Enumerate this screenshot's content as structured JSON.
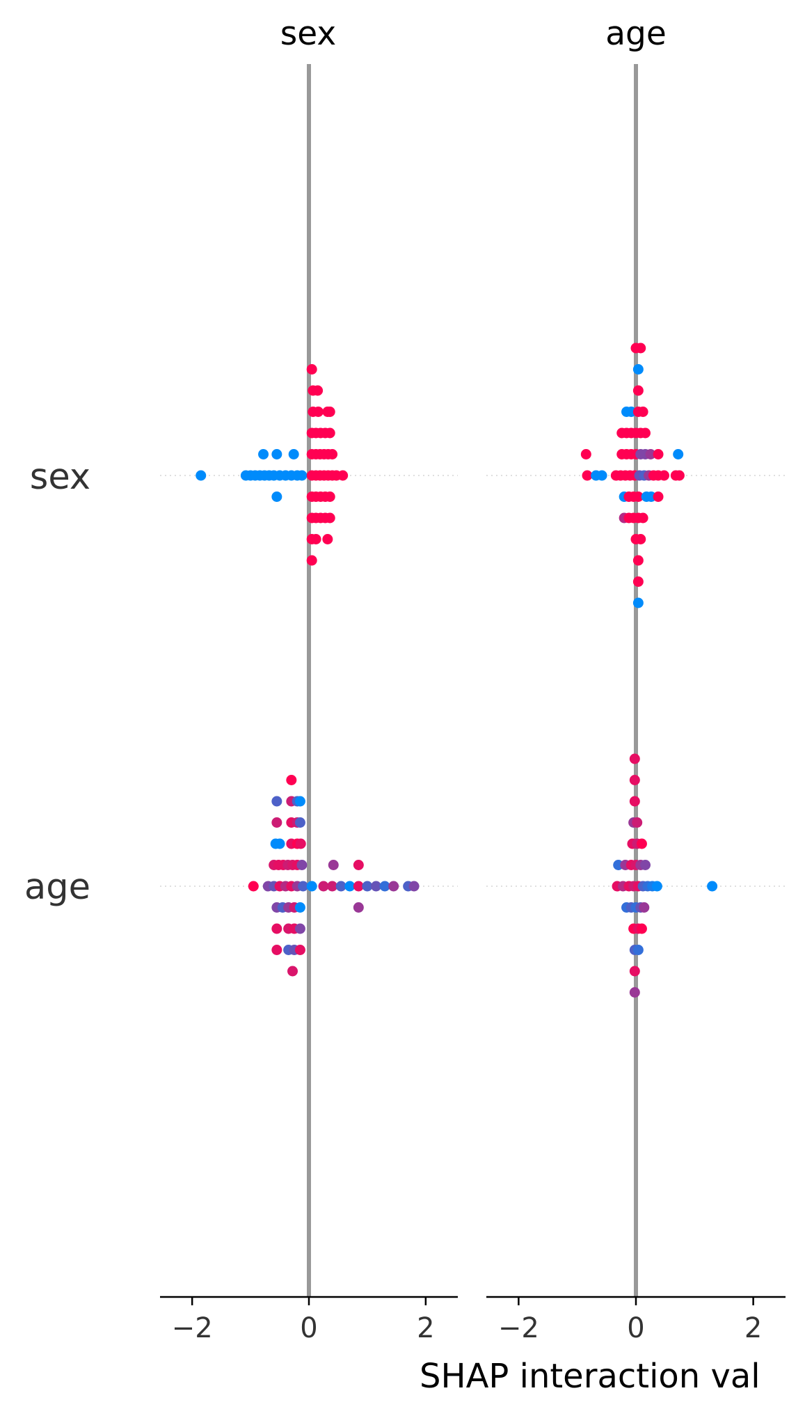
{
  "chart_data": {
    "type": "scatter",
    "subtype": "shap-interaction-summary",
    "columns": [
      "sex",
      "age"
    ],
    "rows": [
      "sex",
      "age"
    ],
    "xlabel": "SHAP interaction val",
    "xlim": [
      -2.55,
      2.55
    ],
    "xticks": [
      {
        "value": -2,
        "label": "−2"
      },
      {
        "value": 0,
        "label": "0"
      },
      {
        "value": 2,
        "label": "2"
      }
    ],
    "colors": {
      "low": "#008bfb",
      "high": "#ff0052",
      "zero_line": "#999999",
      "row_guide": "#cccccc",
      "axis": "#000000"
    },
    "grid": false,
    "legend": "none",
    "panels": [
      {
        "row": "sex",
        "column": "sex",
        "points": [
          {
            "x": 0.05,
            "y": 5,
            "c": 1
          },
          {
            "x": 0.07,
            "y": 4,
            "c": 1
          },
          {
            "x": 0.15,
            "y": 4,
            "c": 1
          },
          {
            "x": 0.07,
            "y": 3,
            "c": 1
          },
          {
            "x": 0.16,
            "y": 3,
            "c": 1
          },
          {
            "x": 0.32,
            "y": 3,
            "c": 1
          },
          {
            "x": 0.36,
            "y": 3,
            "c": 1
          },
          {
            "x": 0.05,
            "y": 2,
            "c": 1
          },
          {
            "x": 0.12,
            "y": 2,
            "c": 1
          },
          {
            "x": 0.2,
            "y": 2,
            "c": 1
          },
          {
            "x": 0.28,
            "y": 2,
            "c": 1
          },
          {
            "x": 0.36,
            "y": 2,
            "c": 1
          },
          {
            "x": -0.78,
            "y": 1,
            "c": 0
          },
          {
            "x": -0.55,
            "y": 1,
            "c": 0
          },
          {
            "x": -0.26,
            "y": 1,
            "c": 0
          },
          {
            "x": 0.05,
            "y": 1,
            "c": 1
          },
          {
            "x": 0.12,
            "y": 1,
            "c": 1
          },
          {
            "x": 0.19,
            "y": 1,
            "c": 1
          },
          {
            "x": 0.26,
            "y": 1,
            "c": 1
          },
          {
            "x": 0.33,
            "y": 1,
            "c": 1
          },
          {
            "x": 0.4,
            "y": 1,
            "c": 1
          },
          {
            "x": -1.85,
            "y": 0,
            "c": 0
          },
          {
            "x": -1.08,
            "y": 0,
            "c": 0
          },
          {
            "x": -1.0,
            "y": 0,
            "c": 0
          },
          {
            "x": -0.92,
            "y": 0,
            "c": 0
          },
          {
            "x": -0.84,
            "y": 0,
            "c": 0
          },
          {
            "x": -0.76,
            "y": 0,
            "c": 0
          },
          {
            "x": -0.68,
            "y": 0,
            "c": 0
          },
          {
            "x": -0.6,
            "y": 0,
            "c": 0
          },
          {
            "x": -0.5,
            "y": 0,
            "c": 0
          },
          {
            "x": -0.4,
            "y": 0,
            "c": 0
          },
          {
            "x": -0.3,
            "y": 0,
            "c": 0
          },
          {
            "x": -0.2,
            "y": 0,
            "c": 0
          },
          {
            "x": -0.12,
            "y": 0,
            "c": 0
          },
          {
            "x": 0.05,
            "y": 0,
            "c": 1
          },
          {
            "x": 0.12,
            "y": 0,
            "c": 1
          },
          {
            "x": 0.19,
            "y": 0,
            "c": 1
          },
          {
            "x": 0.26,
            "y": 0,
            "c": 1
          },
          {
            "x": 0.33,
            "y": 0,
            "c": 1
          },
          {
            "x": 0.4,
            "y": 0,
            "c": 1
          },
          {
            "x": 0.47,
            "y": 0,
            "c": 1
          },
          {
            "x": 0.58,
            "y": 0,
            "c": 1
          },
          {
            "x": -0.55,
            "y": -1,
            "c": 0
          },
          {
            "x": 0.05,
            "y": -1,
            "c": 1
          },
          {
            "x": 0.12,
            "y": -1,
            "c": 1
          },
          {
            "x": 0.2,
            "y": -1,
            "c": 1
          },
          {
            "x": 0.28,
            "y": -1,
            "c": 1
          },
          {
            "x": 0.36,
            "y": -1,
            "c": 1
          },
          {
            "x": 0.05,
            "y": -2,
            "c": 1
          },
          {
            "x": 0.12,
            "y": -2,
            "c": 1
          },
          {
            "x": 0.2,
            "y": -2,
            "c": 1
          },
          {
            "x": 0.28,
            "y": -2,
            "c": 1
          },
          {
            "x": 0.36,
            "y": -2,
            "c": 1
          },
          {
            "x": 0.05,
            "y": -3,
            "c": 1
          },
          {
            "x": 0.12,
            "y": -3,
            "c": 1
          },
          {
            "x": 0.32,
            "y": -3,
            "c": 1
          },
          {
            "x": 0.05,
            "y": -4,
            "c": 1
          }
        ]
      },
      {
        "row": "sex",
        "column": "age",
        "points": [
          {
            "x": 0.0,
            "y": 6,
            "c": 1
          },
          {
            "x": 0.08,
            "y": 6,
            "c": 1
          },
          {
            "x": 0.04,
            "y": 5,
            "c": 0
          },
          {
            "x": 0.04,
            "y": 4,
            "c": 1
          },
          {
            "x": -0.16,
            "y": 3,
            "c": 0
          },
          {
            "x": -0.08,
            "y": 3,
            "c": 0
          },
          {
            "x": 0.04,
            "y": 3,
            "c": 1
          },
          {
            "x": 0.12,
            "y": 3,
            "c": 1
          },
          {
            "x": -0.24,
            "y": 2,
            "c": 1
          },
          {
            "x": -0.16,
            "y": 2,
            "c": 1
          },
          {
            "x": -0.08,
            "y": 2,
            "c": 1
          },
          {
            "x": 0.0,
            "y": 2,
            "c": 1
          },
          {
            "x": 0.08,
            "y": 2,
            "c": 1
          },
          {
            "x": 0.16,
            "y": 2,
            "c": 1
          },
          {
            "x": -0.85,
            "y": 1,
            "c": 1
          },
          {
            "x": -0.24,
            "y": 1,
            "c": 1
          },
          {
            "x": -0.16,
            "y": 1,
            "c": 1
          },
          {
            "x": -0.08,
            "y": 1,
            "c": 1
          },
          {
            "x": 0.0,
            "y": 1,
            "c": 1
          },
          {
            "x": 0.08,
            "y": 1,
            "c": 0.5
          },
          {
            "x": 0.16,
            "y": 1,
            "c": 0.5
          },
          {
            "x": 0.25,
            "y": 1,
            "c": 0.6
          },
          {
            "x": 0.38,
            "y": 1,
            "c": 1
          },
          {
            "x": 0.72,
            "y": 1,
            "c": 0
          },
          {
            "x": -0.83,
            "y": 0,
            "c": 1
          },
          {
            "x": -0.68,
            "y": 0,
            "c": 0
          },
          {
            "x": -0.58,
            "y": 0,
            "c": 0
          },
          {
            "x": -0.34,
            "y": 0,
            "c": 1
          },
          {
            "x": -0.26,
            "y": 0,
            "c": 1
          },
          {
            "x": -0.18,
            "y": 0,
            "c": 1
          },
          {
            "x": -0.1,
            "y": 0,
            "c": 1
          },
          {
            "x": -0.02,
            "y": 0,
            "c": 1
          },
          {
            "x": 0.06,
            "y": 0,
            "c": 0.4
          },
          {
            "x": 0.14,
            "y": 0,
            "c": 0.3
          },
          {
            "x": 0.22,
            "y": 0,
            "c": 0.6
          },
          {
            "x": 0.3,
            "y": 0,
            "c": 1
          },
          {
            "x": 0.38,
            "y": 0,
            "c": 1
          },
          {
            "x": 0.48,
            "y": 0,
            "c": 1
          },
          {
            "x": 0.68,
            "y": 0,
            "c": 1
          },
          {
            "x": 0.74,
            "y": 0,
            "c": 1
          },
          {
            "x": -0.2,
            "y": -1,
            "c": 0
          },
          {
            "x": -0.12,
            "y": -1,
            "c": 1
          },
          {
            "x": -0.04,
            "y": -1,
            "c": 1
          },
          {
            "x": 0.04,
            "y": -1,
            "c": 1
          },
          {
            "x": 0.18,
            "y": -1,
            "c": 0
          },
          {
            "x": 0.26,
            "y": -1,
            "c": 0
          },
          {
            "x": 0.38,
            "y": -1,
            "c": 1
          },
          {
            "x": -0.2,
            "y": -2,
            "c": 0.7
          },
          {
            "x": -0.12,
            "y": -2,
            "c": 1
          },
          {
            "x": -0.04,
            "y": -2,
            "c": 1
          },
          {
            "x": 0.04,
            "y": -2,
            "c": 1
          },
          {
            "x": 0.12,
            "y": -2,
            "c": 1
          },
          {
            "x": 0.0,
            "y": -3,
            "c": 1
          },
          {
            "x": 0.08,
            "y": -3,
            "c": 1
          },
          {
            "x": 0.04,
            "y": -4,
            "c": 1
          },
          {
            "x": 0.04,
            "y": -5,
            "c": 1
          },
          {
            "x": 0.04,
            "y": -6,
            "c": 0
          }
        ]
      },
      {
        "row": "age",
        "column": "sex",
        "points": [
          {
            "x": -0.3,
            "y": 5,
            "c": 1
          },
          {
            "x": -0.55,
            "y": 4,
            "c": 0.3
          },
          {
            "x": -0.3,
            "y": 4,
            "c": 0.8
          },
          {
            "x": -0.2,
            "y": 4,
            "c": 0.3
          },
          {
            "x": -0.15,
            "y": 4,
            "c": 0
          },
          {
            "x": -0.55,
            "y": 3,
            "c": 0.8
          },
          {
            "x": -0.3,
            "y": 3,
            "c": 0.9
          },
          {
            "x": -0.2,
            "y": 3,
            "c": 0.8
          },
          {
            "x": -0.15,
            "y": 3,
            "c": 0.3
          },
          {
            "x": -0.57,
            "y": 2,
            "c": 0
          },
          {
            "x": -0.5,
            "y": 2,
            "c": 0
          },
          {
            "x": -0.3,
            "y": 2,
            "c": 0.9
          },
          {
            "x": -0.2,
            "y": 2,
            "c": 1
          },
          {
            "x": -0.14,
            "y": 2,
            "c": 0.9
          },
          {
            "x": -0.6,
            "y": 1,
            "c": 0.85
          },
          {
            "x": -0.52,
            "y": 1,
            "c": 0.9
          },
          {
            "x": -0.44,
            "y": 1,
            "c": 0.9
          },
          {
            "x": -0.36,
            "y": 1,
            "c": 0.8
          },
          {
            "x": -0.28,
            "y": 1,
            "c": 0.85
          },
          {
            "x": -0.2,
            "y": 1,
            "c": 0.9
          },
          {
            "x": -0.12,
            "y": 1,
            "c": 0.5
          },
          {
            "x": 0.42,
            "y": 1,
            "c": 0.6
          },
          {
            "x": 0.85,
            "y": 1,
            "c": 0.9
          },
          {
            "x": -0.95,
            "y": 0,
            "c": 1
          },
          {
            "x": -0.7,
            "y": 0,
            "c": 0.5
          },
          {
            "x": -0.6,
            "y": 0,
            "c": 0.4
          },
          {
            "x": -0.5,
            "y": 0,
            "c": 0.9
          },
          {
            "x": -0.4,
            "y": 0,
            "c": 0.7
          },
          {
            "x": -0.3,
            "y": 0,
            "c": 0.9
          },
          {
            "x": -0.2,
            "y": 0,
            "c": 0.6
          },
          {
            "x": -0.1,
            "y": 0,
            "c": 0.3
          },
          {
            "x": 0.05,
            "y": 0,
            "c": 0
          },
          {
            "x": 0.25,
            "y": 0,
            "c": 0.8
          },
          {
            "x": 0.4,
            "y": 0,
            "c": 0.8
          },
          {
            "x": 0.55,
            "y": 0,
            "c": 0.3
          },
          {
            "x": 0.7,
            "y": 0,
            "c": 0
          },
          {
            "x": 0.85,
            "y": 0,
            "c": 0.9
          },
          {
            "x": 1.0,
            "y": 0,
            "c": 0.3
          },
          {
            "x": 1.15,
            "y": 0,
            "c": 0.4
          },
          {
            "x": 1.3,
            "y": 0,
            "c": 0.2
          },
          {
            "x": 1.45,
            "y": 0,
            "c": 0.6
          },
          {
            "x": 1.7,
            "y": 0,
            "c": 0.3
          },
          {
            "x": 1.8,
            "y": 0,
            "c": 0.5
          },
          {
            "x": -0.55,
            "y": -1,
            "c": 0.5
          },
          {
            "x": -0.45,
            "y": -1,
            "c": 0.3
          },
          {
            "x": -0.35,
            "y": -1,
            "c": 0.6
          },
          {
            "x": -0.25,
            "y": -1,
            "c": 0.8
          },
          {
            "x": -0.15,
            "y": -1,
            "c": 0
          },
          {
            "x": 0.85,
            "y": -1,
            "c": 0.6
          },
          {
            "x": -0.55,
            "y": -2,
            "c": 0.9
          },
          {
            "x": -0.35,
            "y": -2,
            "c": 0.85
          },
          {
            "x": -0.25,
            "y": -2,
            "c": 0.9
          },
          {
            "x": -0.15,
            "y": -2,
            "c": 0.5
          },
          {
            "x": -0.55,
            "y": -3,
            "c": 0.9
          },
          {
            "x": -0.35,
            "y": -3,
            "c": 0.3
          },
          {
            "x": -0.25,
            "y": -3,
            "c": 0.4
          },
          {
            "x": -0.15,
            "y": -3,
            "c": 0.9
          },
          {
            "x": -0.28,
            "y": -4,
            "c": 0.85
          }
        ]
      },
      {
        "row": "age",
        "column": "age",
        "points": [
          {
            "x": -0.02,
            "y": 6,
            "c": 0.9
          },
          {
            "x": -0.02,
            "y": 5,
            "c": 0.9
          },
          {
            "x": -0.02,
            "y": 4,
            "c": 0.9
          },
          {
            "x": -0.04,
            "y": 3,
            "c": 0.6
          },
          {
            "x": 0.02,
            "y": 3,
            "c": 0.8
          },
          {
            "x": -0.06,
            "y": 2,
            "c": 0.9
          },
          {
            "x": 0.02,
            "y": 2,
            "c": 0.8
          },
          {
            "x": 0.1,
            "y": 2,
            "c": 1
          },
          {
            "x": -0.3,
            "y": 1,
            "c": 0.2
          },
          {
            "x": -0.18,
            "y": 1,
            "c": 0.6
          },
          {
            "x": -0.08,
            "y": 1,
            "c": 0.9
          },
          {
            "x": 0.0,
            "y": 1,
            "c": 0.85
          },
          {
            "x": 0.08,
            "y": 1,
            "c": 0.6
          },
          {
            "x": 0.16,
            "y": 1,
            "c": 0.5
          },
          {
            "x": -0.32,
            "y": 0,
            "c": 0.9
          },
          {
            "x": -0.22,
            "y": 0,
            "c": 0.7
          },
          {
            "x": -0.12,
            "y": 0,
            "c": 0.9
          },
          {
            "x": -0.04,
            "y": 0,
            "c": 0.8
          },
          {
            "x": 0.04,
            "y": 0,
            "c": 0.9
          },
          {
            "x": 0.12,
            "y": 0,
            "c": 0.3
          },
          {
            "x": 0.2,
            "y": 0,
            "c": 0.2
          },
          {
            "x": 0.28,
            "y": 0,
            "c": 0.1
          },
          {
            "x": 0.36,
            "y": 0,
            "c": 0
          },
          {
            "x": 1.3,
            "y": 0,
            "c": 0
          },
          {
            "x": -0.16,
            "y": -1,
            "c": 0.2
          },
          {
            "x": -0.08,
            "y": -1,
            "c": 0.3
          },
          {
            "x": 0.0,
            "y": -1,
            "c": 0.2
          },
          {
            "x": 0.08,
            "y": -1,
            "c": 0.4
          },
          {
            "x": 0.14,
            "y": -1,
            "c": 0.6
          },
          {
            "x": -0.04,
            "y": -2,
            "c": 1
          },
          {
            "x": 0.04,
            "y": -2,
            "c": 0.9
          },
          {
            "x": 0.1,
            "y": -2,
            "c": 1
          },
          {
            "x": -0.02,
            "y": -3,
            "c": 0.3
          },
          {
            "x": 0.04,
            "y": -3,
            "c": 0.2
          },
          {
            "x": -0.02,
            "y": -4,
            "c": 0.9
          },
          {
            "x": -0.02,
            "y": -5,
            "c": 0.6
          }
        ]
      }
    ]
  }
}
